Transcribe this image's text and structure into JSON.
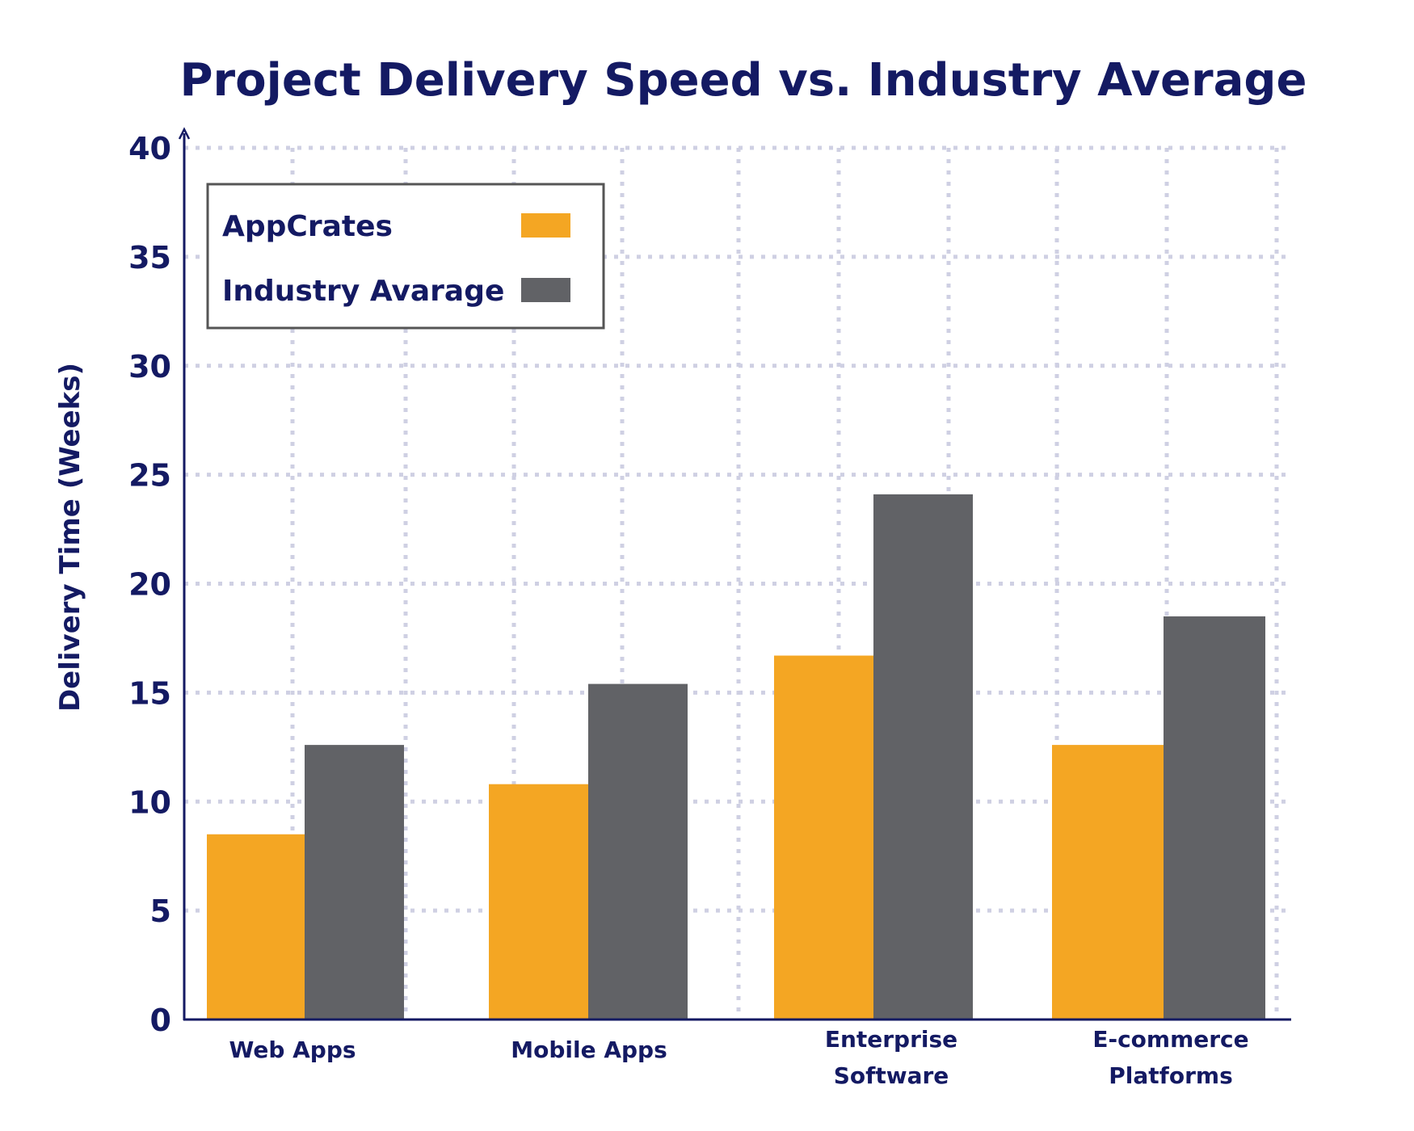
{
  "chart_data": {
    "type": "bar",
    "title": "Project Delivery Speed vs. Industry Average",
    "xlabel": "",
    "ylabel": "Delivery Time (Weeks)",
    "ylim": [
      0,
      40
    ],
    "yticks": [
      "0",
      "5",
      "10",
      "15",
      "20",
      "25",
      "30",
      "35",
      "40"
    ],
    "categories": [
      [
        "Web Apps"
      ],
      [
        "Mobile Apps"
      ],
      [
        "Enterprise",
        "Software"
      ],
      [
        "E-commerce",
        "Platforms"
      ]
    ],
    "series": [
      {
        "name": "AppCrates",
        "color": "#f4a623",
        "values": [
          8.5,
          10.8,
          16.7,
          12.6
        ]
      },
      {
        "name": "Industry Avarage",
        "color": "#616266",
        "values": [
          12.6,
          15.4,
          24.1,
          18.5
        ]
      }
    ],
    "grid": true,
    "legend": "top-left",
    "colors": {
      "axis": "#141a63",
      "text": "#141a63",
      "grid": "#cfd0e3",
      "legend_border": "#555555"
    }
  }
}
